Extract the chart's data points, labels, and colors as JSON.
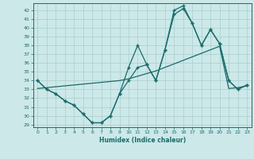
{
  "xlabel": "Humidex (Indice chaleur)",
  "background_color": "#cce8e8",
  "grid_color": "#aacece",
  "line_color": "#1a6b6b",
  "xlim": [
    -0.5,
    23.5
  ],
  "ylim": [
    28.7,
    42.8
  ],
  "yticks": [
    29,
    30,
    31,
    32,
    33,
    34,
    35,
    36,
    37,
    38,
    39,
    40,
    41,
    42
  ],
  "xticks": [
    0,
    1,
    2,
    3,
    4,
    5,
    6,
    7,
    8,
    9,
    10,
    11,
    12,
    13,
    14,
    15,
    16,
    17,
    18,
    19,
    20,
    21,
    22,
    23
  ],
  "line1_x": [
    0,
    1,
    2,
    3,
    4,
    5,
    6,
    7,
    8,
    9,
    10,
    11,
    12,
    13,
    14,
    15,
    16,
    17,
    18,
    19,
    20,
    21,
    22,
    23
  ],
  "line1_y": [
    34.0,
    33.0,
    32.5,
    31.7,
    31.2,
    30.2,
    29.2,
    29.2,
    30.0,
    32.5,
    34.0,
    35.5,
    35.8,
    34.0,
    37.5,
    41.5,
    42.2,
    40.5,
    38.0,
    39.8,
    38.2,
    34.0,
    33.0,
    33.5
  ],
  "line2_x": [
    0,
    1,
    2,
    3,
    4,
    5,
    6,
    7,
    8,
    9,
    10,
    11,
    12,
    13,
    14,
    15,
    16,
    17,
    18,
    19,
    20,
    21,
    22,
    23
  ],
  "line2_y": [
    34.0,
    33.0,
    32.5,
    31.7,
    31.2,
    30.2,
    29.2,
    29.2,
    30.0,
    32.5,
    35.5,
    38.0,
    35.8,
    34.0,
    37.5,
    42.0,
    42.5,
    40.5,
    38.0,
    39.8,
    38.2,
    34.0,
    33.0,
    33.5
  ],
  "line3_x": [
    0,
    1,
    2,
    3,
    4,
    5,
    6,
    7,
    8,
    9,
    10,
    11,
    12,
    13,
    14,
    15,
    16,
    17,
    18,
    19,
    20,
    21,
    22,
    23
  ],
  "line3_y": [
    33.1,
    33.2,
    33.3,
    33.4,
    33.5,
    33.6,
    33.7,
    33.8,
    33.9,
    34.0,
    34.2,
    34.5,
    34.8,
    35.1,
    35.5,
    35.9,
    36.3,
    36.7,
    37.1,
    37.5,
    37.9,
    33.1,
    33.2,
    33.4
  ]
}
